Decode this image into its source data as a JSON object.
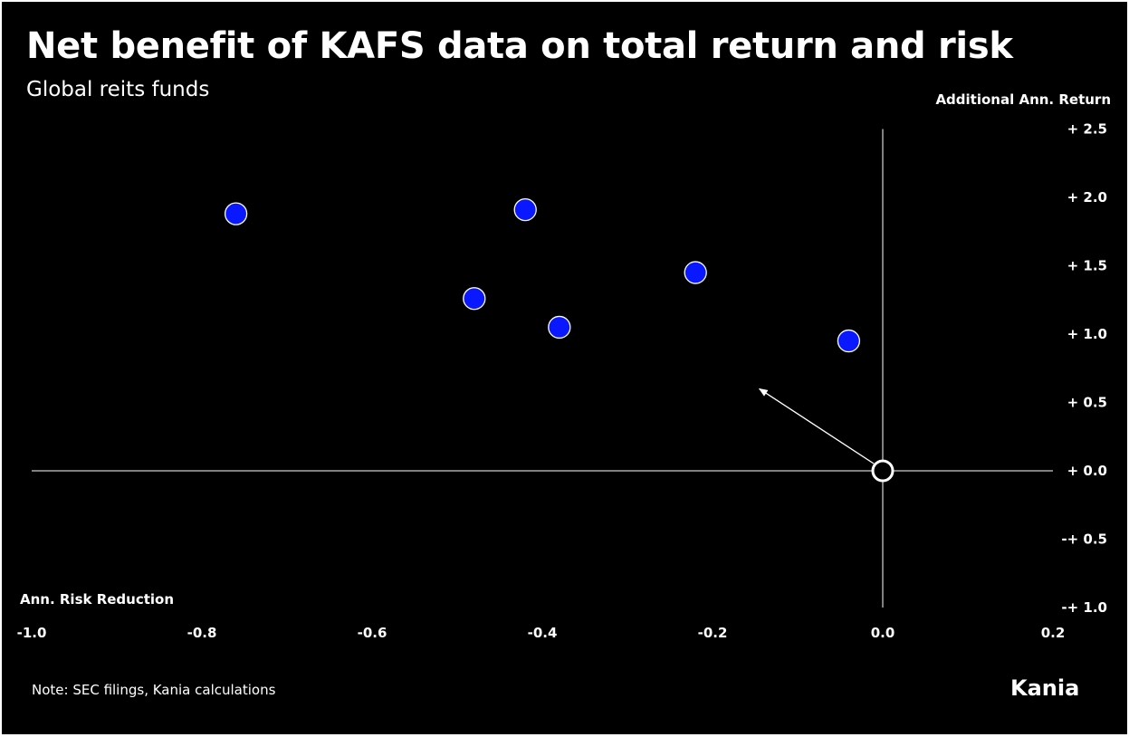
{
  "header": {
    "title": "Net benefit of KAFS data on total return and risk",
    "subtitle": "Global reits funds"
  },
  "footer": {
    "note": "Note: SEC filings, Kania calculations",
    "brand": "Kania"
  },
  "colors": {
    "background": "#000000",
    "point_fill": "#0a18ff",
    "point_stroke": "#ffffff",
    "axis": "#ffffff",
    "text": "#ffffff"
  },
  "chart_data": {
    "type": "scatter",
    "title": "Net benefit of KAFS data on total return and risk",
    "subtitle": "Global reits funds",
    "xlabel": "Ann. Risk Reduction",
    "ylabel": "Additional Ann. Return",
    "xlim": [
      -1.0,
      0.2
    ],
    "ylim": [
      -1.0,
      2.5
    ],
    "x_ticks": [
      {
        "value": -1.0,
        "label": "-1.0"
      },
      {
        "value": -0.8,
        "label": "-0.8"
      },
      {
        "value": -0.6,
        "label": "-0.6"
      },
      {
        "value": -0.4,
        "label": "-0.4"
      },
      {
        "value": -0.2,
        "label": "-0.2"
      },
      {
        "value": 0.0,
        "label": "0.0"
      },
      {
        "value": 0.2,
        "label": "0.2"
      }
    ],
    "y_ticks": [
      {
        "value": 2.5,
        "label": "+ 2.5"
      },
      {
        "value": 2.0,
        "label": "+ 2.0"
      },
      {
        "value": 1.5,
        "label": "+ 1.5"
      },
      {
        "value": 1.0,
        "label": "+ 1.0"
      },
      {
        "value": 0.5,
        "label": "+ 0.5"
      },
      {
        "value": 0.0,
        "label": "+ 0.0"
      },
      {
        "value": -0.5,
        "label": "-+ 0.5"
      },
      {
        "value": -1.0,
        "label": "-+ 1.0"
      }
    ],
    "points": [
      {
        "x": -0.76,
        "y": 1.88
      },
      {
        "x": -0.42,
        "y": 1.91
      },
      {
        "x": -0.48,
        "y": 1.26
      },
      {
        "x": -0.38,
        "y": 1.05
      },
      {
        "x": -0.22,
        "y": 1.45
      },
      {
        "x": -0.04,
        "y": 0.95
      }
    ],
    "origin_marker": {
      "x": 0.0,
      "y": 0.0
    },
    "arrow": {
      "from": {
        "x": 0.0,
        "y": 0.0
      },
      "to": {
        "x": -0.145,
        "y": 0.6
      }
    },
    "grid": false,
    "legend": "none"
  }
}
